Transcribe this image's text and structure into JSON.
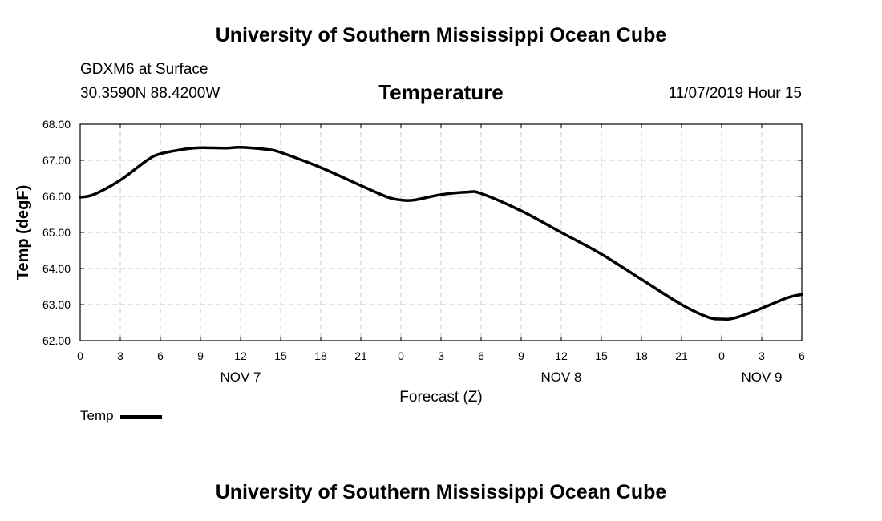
{
  "header": {
    "org_title": "University of Southern Mississippi Ocean Cube",
    "station": "GDXM6 at Surface",
    "coords": "30.3590N 88.4200W",
    "timestamp": "11/07/2019 Hour 15"
  },
  "footer": {
    "org_title": "University of Southern Mississippi Ocean Cube"
  },
  "chart_data": {
    "type": "line",
    "title": "Temperature",
    "xlabel": "Forecast (Z)",
    "ylabel": "Temp (degF)",
    "xlim": [
      0,
      54
    ],
    "ylim": [
      62,
      68
    ],
    "grid": true,
    "x_ticks": [
      0,
      3,
      6,
      9,
      12,
      15,
      18,
      21,
      24,
      27,
      30,
      33,
      36,
      39,
      42,
      45,
      48,
      51,
      54
    ],
    "x_tick_labels": [
      "0",
      "3",
      "6",
      "9",
      "12",
      "15",
      "18",
      "21",
      "0",
      "3",
      "6",
      "9",
      "12",
      "15",
      "18",
      "21",
      "0",
      "3",
      "6"
    ],
    "y_ticks": [
      62,
      63,
      64,
      65,
      66,
      67,
      68
    ],
    "y_tick_labels": [
      "62.00",
      "63.00",
      "64.00",
      "65.00",
      "66.00",
      "67.00",
      "68.00"
    ],
    "date_labels": [
      {
        "x": 12,
        "label": "NOV 7"
      },
      {
        "x": 36,
        "label": "NOV 8"
      },
      {
        "x": 51,
        "label": "NOV 9"
      }
    ],
    "legend": {
      "position": "bottom-left",
      "entries": [
        "Temp"
      ]
    },
    "series": [
      {
        "name": "Temp",
        "x": [
          0,
          1,
          3,
          5,
          6,
          8,
          9,
          11,
          12,
          14,
          15,
          18,
          21,
          23,
          24,
          25,
          27,
          29,
          30,
          33,
          36,
          39,
          42,
          45,
          47,
          48,
          49,
          51,
          53,
          54
        ],
        "y": [
          65.98,
          66.05,
          66.45,
          67.0,
          67.18,
          67.32,
          67.35,
          67.34,
          67.36,
          67.3,
          67.22,
          66.8,
          66.3,
          65.98,
          65.9,
          65.9,
          66.05,
          66.12,
          66.08,
          65.6,
          65.0,
          64.4,
          63.7,
          63.0,
          62.65,
          62.6,
          62.63,
          62.9,
          63.2,
          63.28
        ]
      }
    ]
  }
}
